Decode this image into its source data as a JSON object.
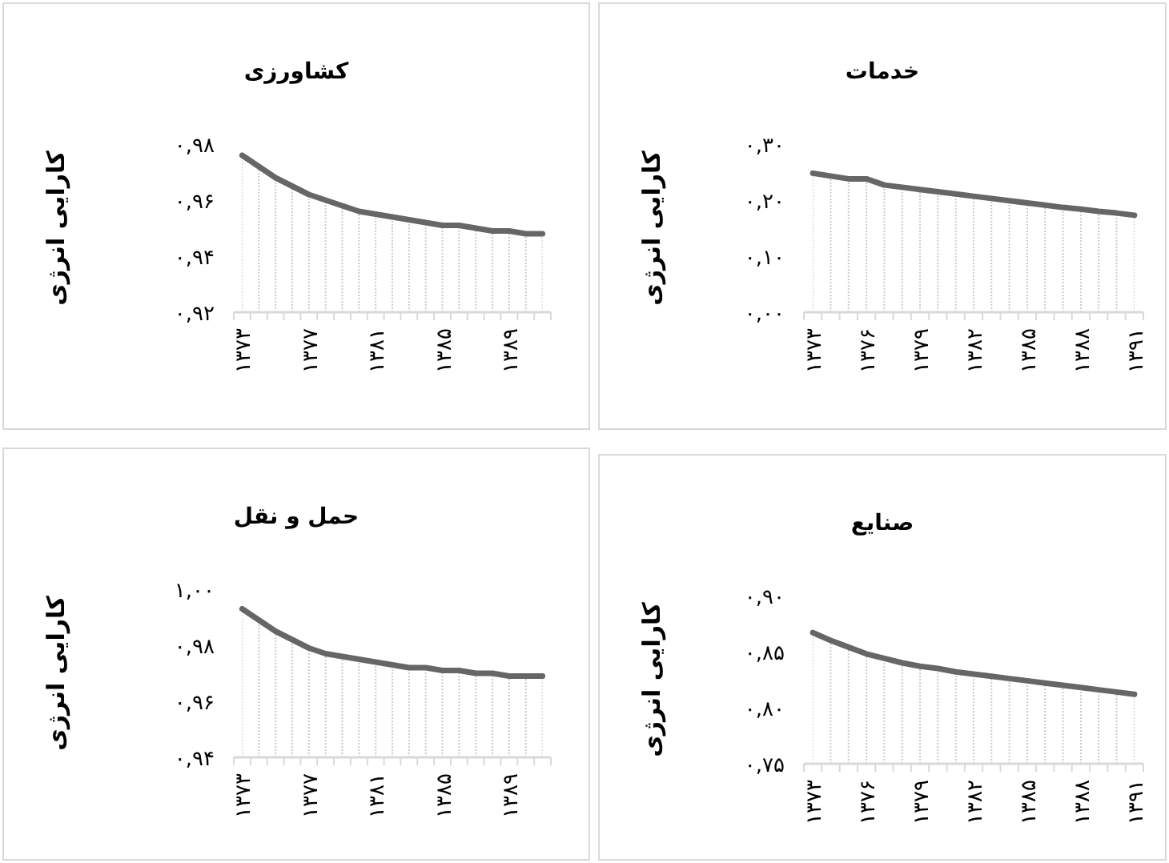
{
  "chart_data": [
    {
      "type": "area",
      "title": "کشاورزی",
      "ylabel": "کارایی انرژی",
      "color": "#666666",
      "categories": [
        "۱۳۷۳",
        null,
        null,
        null,
        "۱۳۷۷",
        null,
        null,
        null,
        "۱۳۸۱",
        null,
        null,
        null,
        "۱۳۸۵",
        null,
        null,
        null,
        "۱۳۸۹",
        null,
        null
      ],
      "values": [
        0.976,
        0.972,
        0.968,
        0.965,
        0.962,
        0.96,
        0.958,
        0.956,
        0.955,
        0.954,
        0.953,
        0.952,
        0.951,
        0.951,
        0.95,
        0.949,
        0.949,
        0.948,
        0.948
      ],
      "ylim": [
        0.92,
        0.98
      ],
      "yticks": [
        {
          "value": 0.92,
          "label": "۰,۹۲"
        },
        {
          "value": 0.94,
          "label": "۰,۹۴"
        },
        {
          "value": 0.96,
          "label": "۰,۹۶"
        },
        {
          "value": 0.98,
          "label": "۰,۹۸"
        }
      ]
    },
    {
      "type": "area",
      "title": "خدمات",
      "ylabel": "کارایی انرژی",
      "color": "#666666",
      "categories": [
        "۱۳۷۳",
        null,
        null,
        "۱۳۷۶",
        null,
        null,
        "۱۳۷۹",
        null,
        null,
        "۱۳۸۲",
        null,
        null,
        "۱۳۸۵",
        null,
        null,
        "۱۳۸۸",
        null,
        null,
        "۱۳۹۱"
      ],
      "values": [
        0.248,
        0.243,
        0.238,
        0.238,
        0.227,
        0.223,
        0.219,
        0.215,
        0.211,
        0.207,
        0.203,
        0.199,
        0.195,
        0.191,
        0.187,
        0.184,
        0.18,
        0.177,
        0.173
      ],
      "ylim": [
        0,
        0.3
      ],
      "yticks": [
        {
          "value": 0,
          "label": "۰,۰۰"
        },
        {
          "value": 0.1,
          "label": "۰,۱۰"
        },
        {
          "value": 0.2,
          "label": "۰,۲۰"
        },
        {
          "value": 0.3,
          "label": "۰,۳۰"
        }
      ]
    },
    {
      "type": "area",
      "title": "حمل و نقل",
      "ylabel": "کارایی انرژی",
      "color": "#666666",
      "categories": [
        "۱۳۷۳",
        null,
        null,
        null,
        "۱۳۷۷",
        null,
        null,
        null,
        "۱۳۸۱",
        null,
        null,
        null,
        "۱۳۸۵",
        null,
        null,
        null,
        "۱۳۸۹",
        null,
        null
      ],
      "values": [
        0.993,
        0.989,
        0.985,
        0.982,
        0.979,
        0.977,
        0.976,
        0.975,
        0.974,
        0.973,
        0.972,
        0.972,
        0.971,
        0.971,
        0.97,
        0.97,
        0.969,
        0.969,
        0.969
      ],
      "ylim": [
        0.94,
        1.0
      ],
      "yticks": [
        {
          "value": 0.94,
          "label": "۰,۹۴"
        },
        {
          "value": 0.96,
          "label": "۰,۹۶"
        },
        {
          "value": 0.98,
          "label": "۰,۹۸"
        },
        {
          "value": 1.0,
          "label": "۱,۰۰"
        }
      ]
    },
    {
      "type": "area",
      "title": "صنایع",
      "ylabel": "کارایی انرژی",
      "color": "#666666",
      "categories": [
        "۱۳۷۳",
        null,
        null,
        "۱۳۷۶",
        null,
        null,
        "۱۳۷۹",
        null,
        null,
        "۱۳۸۲",
        null,
        null,
        "۱۳۸۵",
        null,
        null,
        "۱۳۸۸",
        null,
        null,
        "۱۳۹۱"
      ],
      "values": [
        0.867,
        0.86,
        0.854,
        0.848,
        0.844,
        0.84,
        0.837,
        0.835,
        0.832,
        0.83,
        0.828,
        0.826,
        0.824,
        0.822,
        0.82,
        0.818,
        0.816,
        0.814,
        0.812
      ],
      "ylim": [
        0.75,
        0.9
      ],
      "yticks": [
        {
          "value": 0.75,
          "label": "۰,۷۵"
        },
        {
          "value": 0.8,
          "label": "۰,۸۰"
        },
        {
          "value": 0.85,
          "label": "۰,۸۵"
        },
        {
          "value": 0.9,
          "label": "۰,۹۰"
        }
      ]
    }
  ]
}
